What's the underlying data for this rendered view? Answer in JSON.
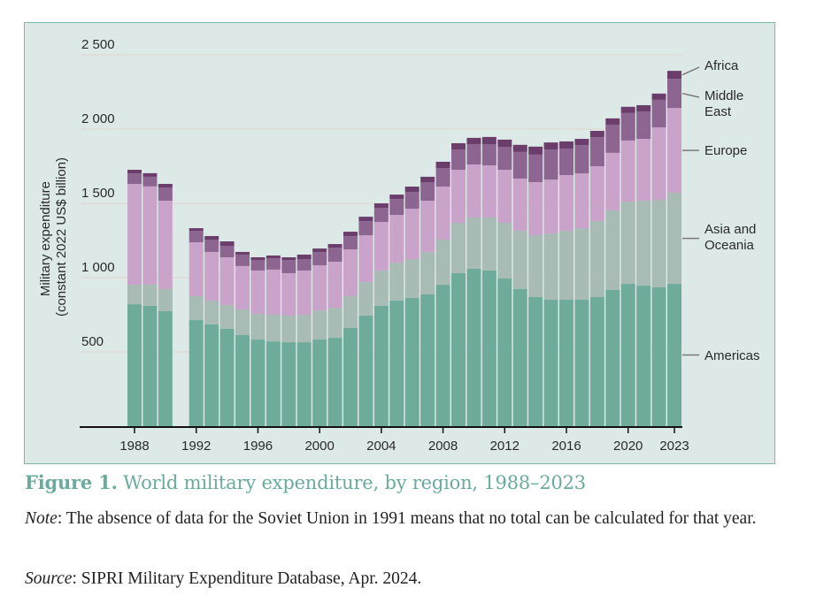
{
  "chart_data": {
    "type": "bar",
    "stacked": true,
    "title": "Figure 1. World military expenditure, by region, 1988–2023",
    "xlabel": "",
    "ylabel": "Military expenditure\n(constant 2022 US$ billion)",
    "ylabel_lines": [
      "Military expenditure",
      "(constant 2022 US$ billion)"
    ],
    "ylim": [
      0,
      2500
    ],
    "yticks": [
      500,
      1000,
      1500,
      2000,
      2500
    ],
    "ytick_labels": [
      "500",
      "1 000",
      "1 500",
      "2 000",
      "2 500"
    ],
    "xtick_labels": [
      "1988",
      "1992",
      "1996",
      "2000",
      "2004",
      "2008",
      "2012",
      "2016",
      "2020",
      "2023"
    ],
    "grid": true,
    "legend_placement": "right",
    "categories": [
      1988,
      1989,
      1990,
      1991,
      1992,
      1993,
      1994,
      1995,
      1996,
      1997,
      1998,
      1999,
      2000,
      2001,
      2002,
      2003,
      2004,
      2005,
      2006,
      2007,
      2008,
      2009,
      2010,
      2011,
      2012,
      2013,
      2014,
      2015,
      2016,
      2017,
      2018,
      2019,
      2020,
      2021,
      2022,
      2023
    ],
    "series": [
      {
        "name": "Americas",
        "color": "#6fab9b",
        "legend": [
          "Americas"
        ],
        "values": [
          821,
          810,
          774,
          null,
          714,
          685,
          655,
          613,
          583,
          571,
          565,
          565,
          583,
          595,
          661,
          744,
          810,
          845,
          863,
          887,
          952,
          1030,
          1060,
          1048,
          994,
          923,
          869,
          851,
          851,
          851,
          869,
          917,
          958,
          946,
          935,
          958
        ]
      },
      {
        "name": "Asia and Oceania",
        "color": "#a8bbb5",
        "legend": [
          "Asia and",
          "Oceania"
        ],
        "values": [
          131,
          143,
          149,
          null,
          161,
          161,
          161,
          173,
          173,
          179,
          179,
          185,
          196,
          202,
          214,
          226,
          238,
          256,
          262,
          286,
          304,
          339,
          345,
          357,
          375,
          393,
          417,
          446,
          464,
          482,
          512,
          536,
          554,
          571,
          589,
          613
        ]
      },
      {
        "name": "Europe",
        "color": "#c9a3ca",
        "legend": [
          "Europe"
        ],
        "values": [
          679,
          661,
          595,
          null,
          363,
          327,
          321,
          292,
          292,
          304,
          286,
          298,
          304,
          310,
          315,
          315,
          327,
          321,
          339,
          345,
          357,
          357,
          357,
          351,
          357,
          351,
          357,
          363,
          375,
          369,
          369,
          387,
          411,
          417,
          488,
          571
        ]
      },
      {
        "name": "Middle East",
        "color": "#8c6590",
        "legend": [
          "Middle",
          "East"
        ],
        "values": [
          71,
          65,
          89,
          null,
          77,
          83,
          77,
          77,
          71,
          77,
          89,
          77,
          89,
          95,
          89,
          95,
          95,
          107,
          113,
          125,
          125,
          137,
          137,
          143,
          155,
          179,
          185,
          202,
          179,
          190,
          196,
          190,
          185,
          185,
          185,
          196
        ]
      },
      {
        "name": "Africa",
        "color": "#6a3d6b",
        "legend": [
          "Africa"
        ],
        "values": [
          24,
          24,
          24,
          null,
          18,
          24,
          30,
          18,
          18,
          18,
          18,
          30,
          24,
          24,
          30,
          30,
          30,
          30,
          36,
          36,
          42,
          42,
          42,
          48,
          48,
          48,
          54,
          48,
          48,
          42,
          42,
          42,
          42,
          42,
          42,
          54
        ]
      }
    ],
    "annotations": [
      "No data for 1991 (Soviet Union)"
    ]
  },
  "caption": {
    "label": "Figure 1.",
    "text": " World military expenditure, by region, 1988–2023"
  },
  "note": {
    "label": "Note",
    "text": ": The absence of data for the Soviet Union in 1991 means that no total can be calculated for that year."
  },
  "source": {
    "label": "Source",
    "text": ": SIPRI Military Expenditure Database, Apr. 2024."
  },
  "colors": {
    "panel_background": "#dde9e6",
    "panel_border": "#7fb8ab",
    "caption": "#6aab9d",
    "gridline": "#e0dbd6"
  }
}
